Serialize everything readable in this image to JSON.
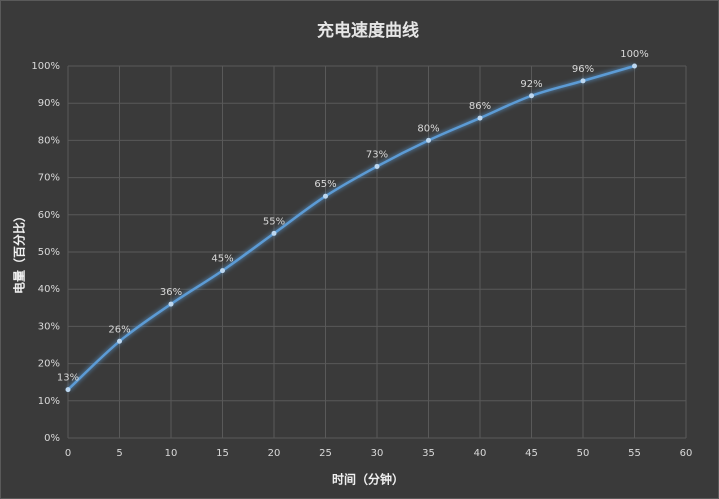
{
  "chart_data": {
    "type": "line",
    "title": "充电速度曲线",
    "x_label": "时间（分钟）",
    "y_label": "电量（百分比）",
    "x": [
      0,
      5,
      10,
      15,
      20,
      25,
      30,
      35,
      40,
      45,
      50,
      55
    ],
    "values": [
      13,
      26,
      36,
      45,
      55,
      65,
      73,
      80,
      86,
      92,
      96,
      100
    ],
    "value_labels": [
      "13%",
      "26%",
      "36%",
      "45%",
      "55%",
      "65%",
      "73%",
      "80%",
      "86%",
      "92%",
      "96%",
      "100%"
    ],
    "color": "#5b9bd5",
    "xlim": [
      0,
      60
    ],
    "xticks": [
      0,
      5,
      10,
      15,
      20,
      25,
      30,
      35,
      40,
      45,
      50,
      55,
      60
    ],
    "ylim": [
      0,
      100
    ],
    "yticks": [
      {
        "value": 0,
        "label": "0%"
      },
      {
        "value": 10,
        "label": "10%"
      },
      {
        "value": 20,
        "label": "20%"
      },
      {
        "value": 30,
        "label": "30%"
      },
      {
        "value": 40,
        "label": "40%"
      },
      {
        "value": 50,
        "label": "50%"
      },
      {
        "value": 60,
        "label": "60%"
      },
      {
        "value": 70,
        "label": "70%"
      },
      {
        "value": 80,
        "label": "80%"
      },
      {
        "value": 90,
        "label": "90%"
      },
      {
        "value": 100,
        "label": "100%"
      }
    ],
    "grid": true
  }
}
